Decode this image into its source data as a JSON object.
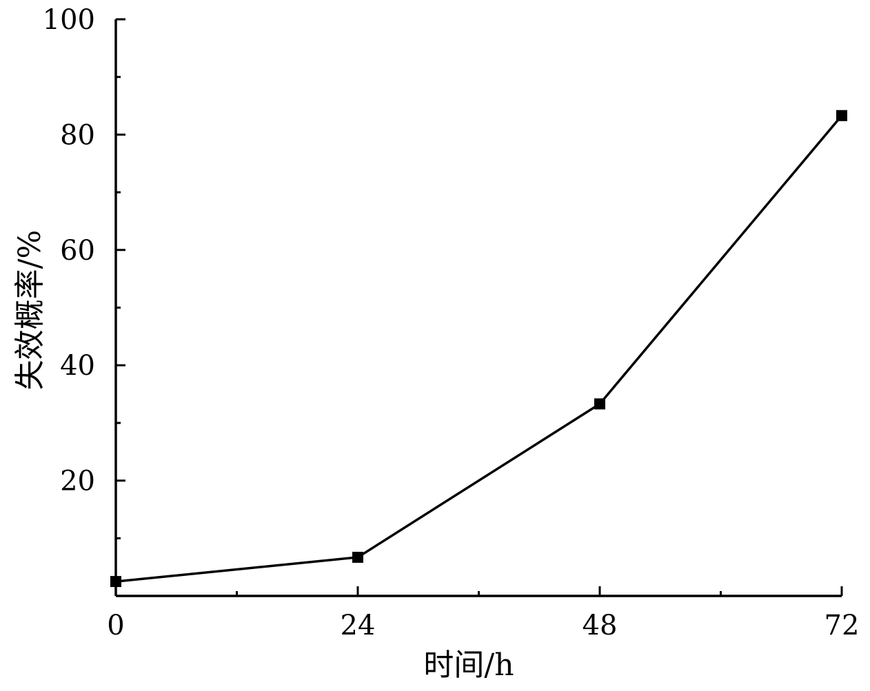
{
  "chart_data": {
    "type": "line",
    "title": "",
    "xlabel": "时间/h",
    "ylabel": "失效概率/%",
    "x": [
      0,
      24,
      48,
      72
    ],
    "series": [
      {
        "values": [
          2.5,
          6.7,
          33.3,
          83.3
        ]
      }
    ],
    "xlim": [
      0,
      72
    ],
    "ylim": [
      0,
      100
    ],
    "xticks": [
      0,
      24,
      48,
      72
    ],
    "xtick_labels": [
      "0",
      "24",
      "48",
      "72"
    ],
    "xminor": [
      12,
      36,
      60
    ],
    "yticks": [
      20,
      40,
      60,
      80,
      100
    ],
    "ytick_labels": [
      "20",
      "40",
      "60",
      "80",
      "100"
    ],
    "yminor": [
      10,
      30,
      50,
      70,
      90
    ],
    "grid": false,
    "legend": "none",
    "colors": {
      "line": "#000000",
      "marker": "#000000",
      "axis": "#000000"
    }
  }
}
